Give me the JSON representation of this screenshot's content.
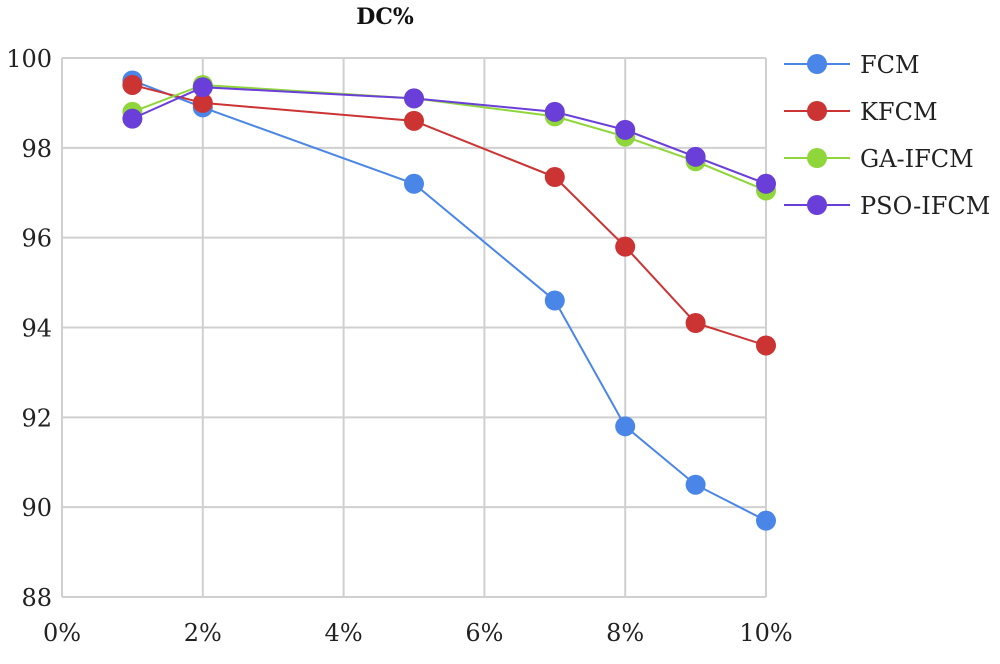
{
  "chart_data": {
    "type": "line",
    "title": "DC%",
    "xlabel": "",
    "ylabel": "",
    "x": [
      1,
      2,
      5,
      7,
      8,
      9,
      10
    ],
    "xlim": [
      0,
      10
    ],
    "ylim": [
      88,
      100
    ],
    "x_ticks": [
      "0%",
      "2%",
      "4%",
      "6%",
      "8%",
      "10%"
    ],
    "y_ticks": [
      "88",
      "90",
      "92",
      "94",
      "96",
      "98",
      "100"
    ],
    "grid": true,
    "legend_position": "right",
    "series": [
      {
        "name": "FCM",
        "color": "#4a86e8",
        "values": [
          99.5,
          98.9,
          97.2,
          94.6,
          91.8,
          90.5,
          89.7
        ]
      },
      {
        "name": "KFCM",
        "color": "#cc3333",
        "values": [
          99.4,
          99.0,
          98.6,
          97.35,
          95.8,
          94.1,
          93.6
        ]
      },
      {
        "name": "GA-IFCM",
        "color": "#8fd63a",
        "values": [
          98.8,
          99.4,
          99.1,
          98.7,
          98.25,
          97.7,
          97.05
        ]
      },
      {
        "name": "PSO-IFCM",
        "color": "#6a3fd9",
        "values": [
          98.65,
          99.35,
          99.1,
          98.8,
          98.4,
          97.8,
          97.2
        ]
      }
    ]
  }
}
